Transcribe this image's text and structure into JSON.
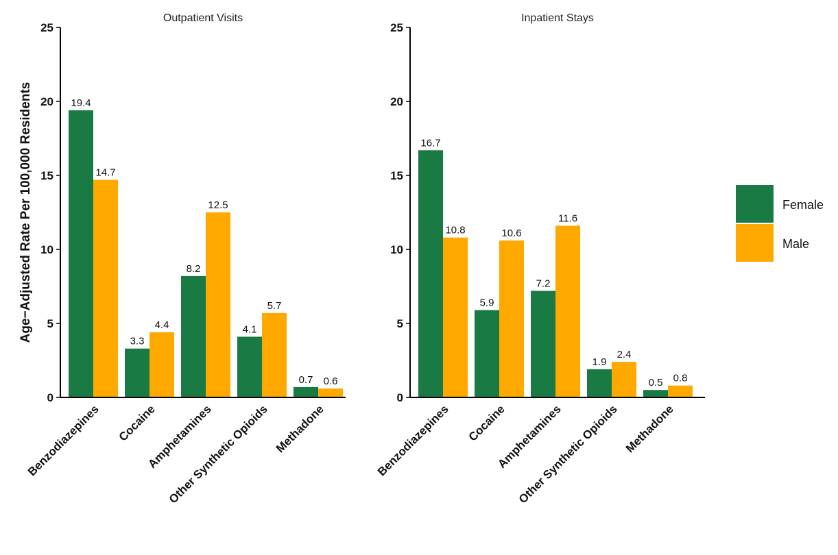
{
  "chart_data": [
    {
      "type": "bar",
      "title": "Outpatient Visits",
      "ylabel": "Age−Adjusted Rate Per 100,000 Residents",
      "xlabel": "",
      "ylim": [
        0,
        25
      ],
      "yticks": [
        0,
        5,
        10,
        15,
        20,
        25
      ],
      "categories": [
        "Benzodiazepines",
        "Cocaine",
        "Amphetamines",
        "Other Synthetic Opioids",
        "Methadone"
      ],
      "series": [
        {
          "name": "Female",
          "color": "#1a7a43",
          "values": [
            19.4,
            3.3,
            8.2,
            4.1,
            0.7
          ],
          "labels": [
            "19.4",
            "3.3",
            "8.2",
            "4.1",
            "0.7"
          ]
        },
        {
          "name": "Male",
          "color": "#ffa800",
          "values": [
            14.7,
            4.4,
            12.5,
            5.7,
            0.6
          ],
          "labels": [
            "14.7",
            "4.4",
            "12.5",
            "5.7",
            "0.6"
          ]
        }
      ]
    },
    {
      "type": "bar",
      "title": "Inpatient Stays",
      "ylabel": "",
      "xlabel": "",
      "ylim": [
        0,
        25
      ],
      "yticks": [
        0,
        5,
        10,
        15,
        20,
        25
      ],
      "categories": [
        "Benzodiazepines",
        "Cocaine",
        "Amphetamines",
        "Other Synthetic Opioids",
        "Methadone"
      ],
      "series": [
        {
          "name": "Female",
          "color": "#1a7a43",
          "values": [
            16.7,
            5.9,
            7.2,
            1.9,
            0.5
          ],
          "labels": [
            "16.7",
            "5.9",
            "7.2",
            "1.9",
            "0.5"
          ]
        },
        {
          "name": "Male",
          "color": "#ffa800",
          "values": [
            10.8,
            10.6,
            11.6,
            2.4,
            0.8
          ],
          "labels": [
            "10.8",
            "10.6",
            "11.6",
            "2.4",
            "0.8"
          ]
        }
      ]
    }
  ],
  "legend": {
    "placement": "right",
    "items": [
      {
        "label": "Female",
        "color": "#1a7a43"
      },
      {
        "label": "Male",
        "color": "#ffa800"
      }
    ]
  }
}
